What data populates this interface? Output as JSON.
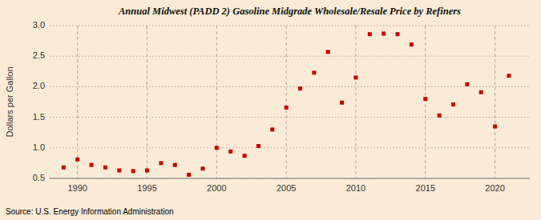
{
  "chart_data": {
    "type": "scatter",
    "title": "Annual Midwest (PADD 2) Gasoline Midgrade Wholesale/Resale Price by Refiners",
    "ylabel": "Dollars per Gallon",
    "annotations": [
      "Source: U.S. Energy Information Administration"
    ],
    "color": "#cc0000",
    "marker": "square",
    "grid": true,
    "xlim": [
      1988.0,
      2022.5
    ],
    "ylim": [
      0.5,
      3.0
    ],
    "xticks": [
      1990,
      1995,
      2000,
      2005,
      2010,
      2015,
      2020
    ],
    "yticks": [
      0.5,
      {
        "value": 1.0,
        "label": "1.0"
      },
      1.5,
      {
        "value": 2.0,
        "label": "2.0"
      },
      2.5,
      {
        "value": 3.0,
        "label": "3.0"
      }
    ],
    "x": [
      1989,
      1990,
      1991,
      1992,
      1993,
      1994,
      1995,
      1996,
      1997,
      1998,
      1999,
      2000,
      2001,
      2002,
      2003,
      2004,
      2005,
      2006,
      2007,
      2008,
      2009,
      2010,
      2011,
      2012,
      2013,
      2014,
      2015,
      2016,
      2017,
      2018,
      2019,
      2020,
      2021
    ],
    "values": [
      0.68,
      0.81,
      0.72,
      0.68,
      0.63,
      0.62,
      0.63,
      0.75,
      0.72,
      0.56,
      0.66,
      1.0,
      0.94,
      0.87,
      1.03,
      1.3,
      1.66,
      1.97,
      2.23,
      2.57,
      1.74,
      2.15,
      2.86,
      2.87,
      2.86,
      2.69,
      1.8,
      1.53,
      1.71,
      2.04,
      1.91,
      1.35,
      2.18
    ]
  }
}
